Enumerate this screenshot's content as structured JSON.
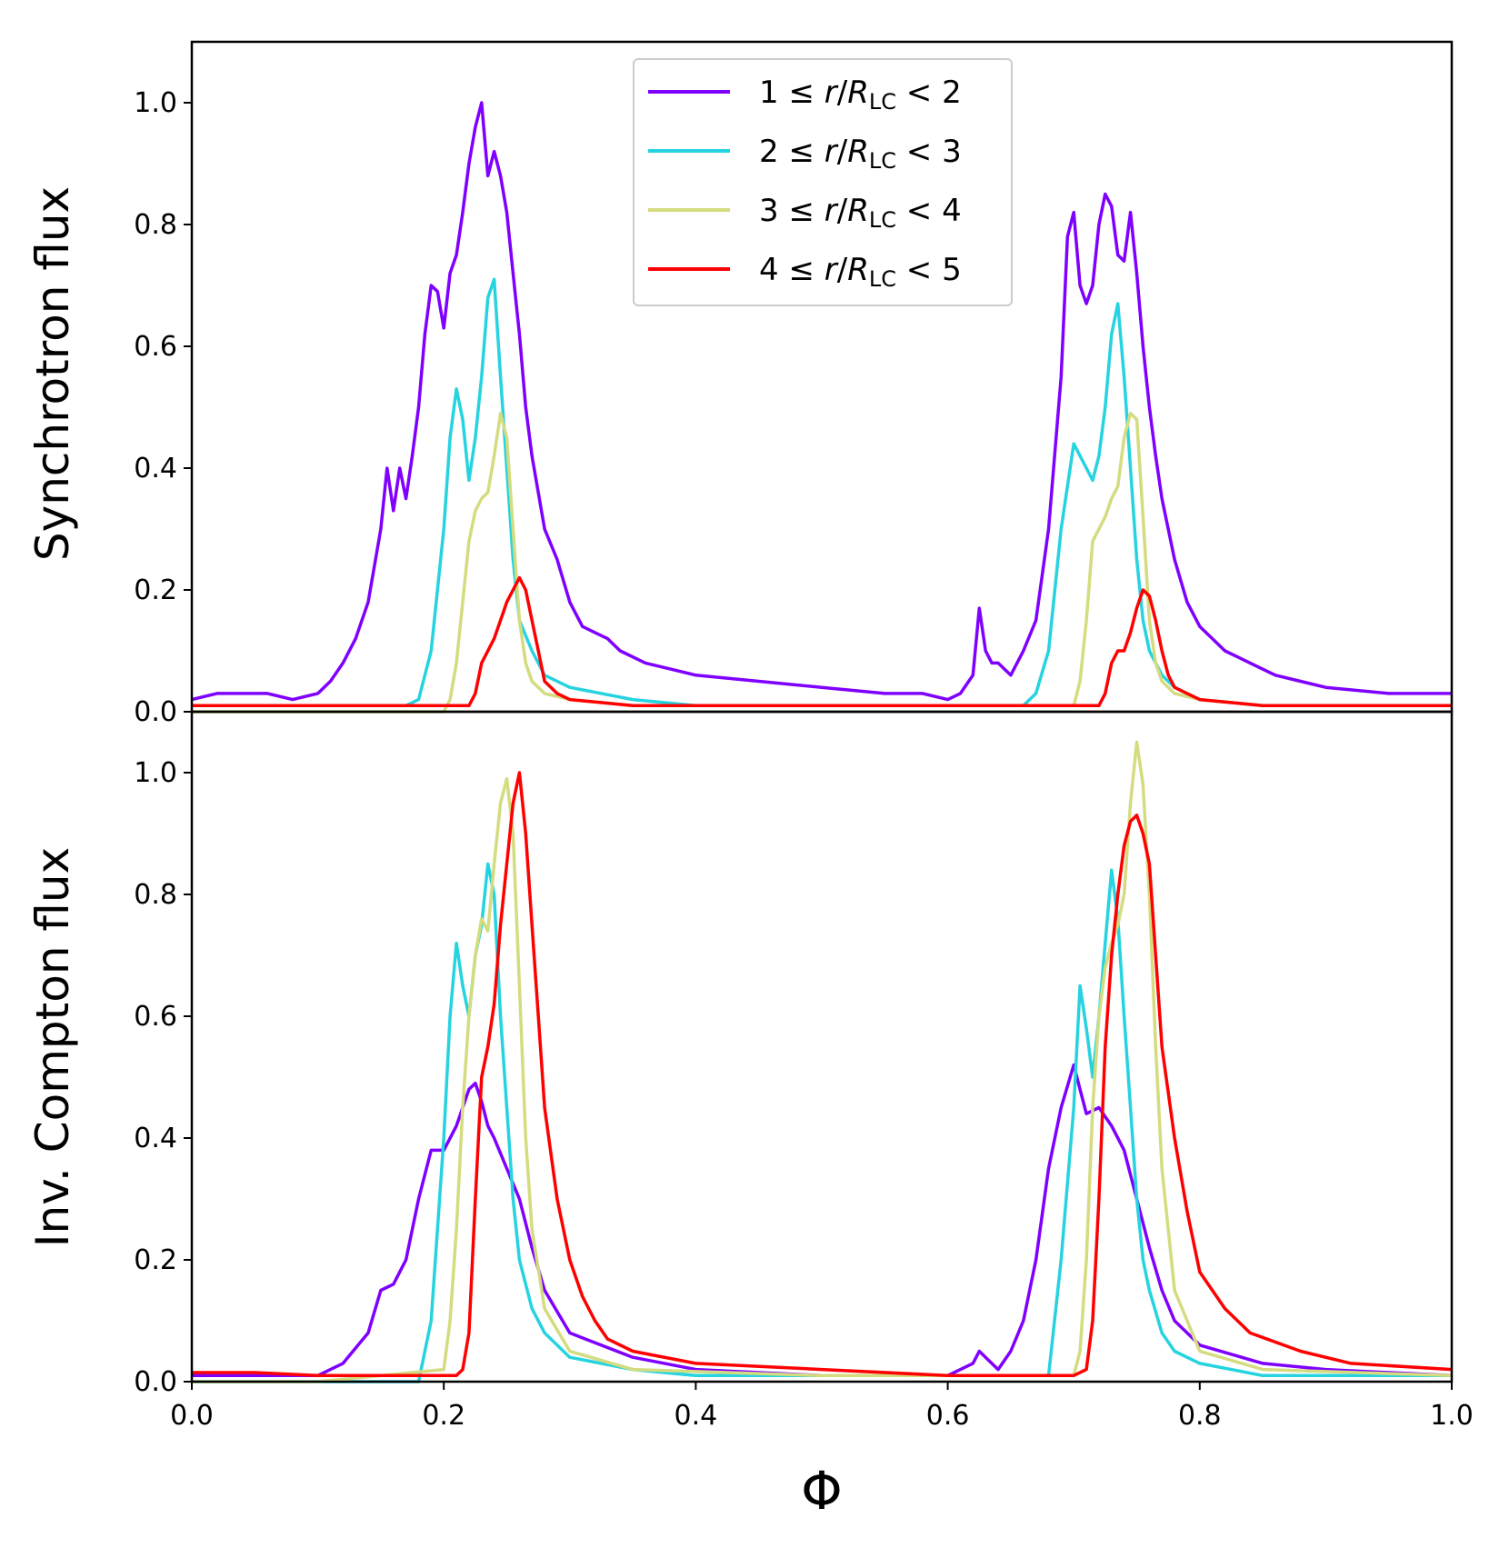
{
  "chart_data": [
    {
      "type": "line",
      "title": "",
      "xlabel": "",
      "ylabel": "Synchrotron flux",
      "xlim": [
        0.0,
        1.0
      ],
      "ylim": [
        0.0,
        1.1
      ],
      "grid": false,
      "xticks": [],
      "yticks": [
        "0.0",
        "0.2",
        "0.4",
        "0.6",
        "0.8",
        "1.0"
      ],
      "legend": {
        "position": "upper-center",
        "entries": [
          {
            "prefix": "1 ≤ ",
            "r": "r",
            "slash": "/",
            "R": "R",
            "sub": "LC",
            "suffix": " < 2",
            "color": "#7f00ff"
          },
          {
            "prefix": "2 ≤ ",
            "r": "r",
            "slash": "/",
            "R": "R",
            "sub": "LC",
            "suffix": " < 3",
            "color": "#26d3e0"
          },
          {
            "prefix": "3 ≤ ",
            "r": "r",
            "slash": "/",
            "R": "R",
            "sub": "LC",
            "suffix": " < 4",
            "color": "#d4dc7f"
          },
          {
            "prefix": "4 ≤ ",
            "r": "r",
            "slash": "/",
            "R": "R",
            "sub": "LC",
            "suffix": " < 5",
            "color": "#ff0000"
          }
        ]
      },
      "series": [
        {
          "name": "1 ≤ r/R_LC < 2",
          "color": "#7f00ff",
          "x": [
            0.0,
            0.02,
            0.04,
            0.06,
            0.08,
            0.1,
            0.11,
            0.12,
            0.13,
            0.14,
            0.15,
            0.155,
            0.16,
            0.165,
            0.17,
            0.175,
            0.18,
            0.185,
            0.19,
            0.195,
            0.2,
            0.205,
            0.21,
            0.215,
            0.22,
            0.225,
            0.23,
            0.235,
            0.24,
            0.245,
            0.25,
            0.255,
            0.26,
            0.265,
            0.27,
            0.28,
            0.29,
            0.3,
            0.31,
            0.32,
            0.33,
            0.34,
            0.36,
            0.38,
            0.4,
            0.45,
            0.5,
            0.55,
            0.58,
            0.6,
            0.61,
            0.62,
            0.625,
            0.63,
            0.635,
            0.64,
            0.65,
            0.66,
            0.67,
            0.68,
            0.69,
            0.695,
            0.7,
            0.705,
            0.71,
            0.715,
            0.72,
            0.725,
            0.73,
            0.735,
            0.74,
            0.745,
            0.75,
            0.755,
            0.76,
            0.765,
            0.77,
            0.78,
            0.79,
            0.8,
            0.81,
            0.82,
            0.83,
            0.84,
            0.86,
            0.88,
            0.9,
            0.95,
            1.0
          ],
          "y": [
            0.02,
            0.03,
            0.03,
            0.03,
            0.02,
            0.03,
            0.05,
            0.08,
            0.12,
            0.18,
            0.3,
            0.4,
            0.33,
            0.4,
            0.35,
            0.42,
            0.5,
            0.62,
            0.7,
            0.69,
            0.63,
            0.72,
            0.75,
            0.82,
            0.9,
            0.96,
            1.0,
            0.88,
            0.92,
            0.88,
            0.82,
            0.72,
            0.62,
            0.5,
            0.42,
            0.3,
            0.25,
            0.18,
            0.14,
            0.13,
            0.12,
            0.1,
            0.08,
            0.07,
            0.06,
            0.05,
            0.04,
            0.03,
            0.03,
            0.02,
            0.03,
            0.06,
            0.17,
            0.1,
            0.08,
            0.08,
            0.06,
            0.1,
            0.15,
            0.3,
            0.55,
            0.78,
            0.82,
            0.7,
            0.67,
            0.7,
            0.8,
            0.85,
            0.83,
            0.75,
            0.74,
            0.82,
            0.72,
            0.6,
            0.5,
            0.42,
            0.35,
            0.25,
            0.18,
            0.14,
            0.12,
            0.1,
            0.09,
            0.08,
            0.06,
            0.05,
            0.04,
            0.03,
            0.03
          ]
        },
        {
          "name": "2 ≤ r/R_LC < 3",
          "color": "#26d3e0",
          "x": [
            0.0,
            0.1,
            0.17,
            0.18,
            0.19,
            0.2,
            0.205,
            0.21,
            0.215,
            0.22,
            0.225,
            0.23,
            0.235,
            0.24,
            0.245,
            0.25,
            0.255,
            0.26,
            0.27,
            0.28,
            0.3,
            0.35,
            0.4,
            0.5,
            0.6,
            0.65,
            0.66,
            0.67,
            0.68,
            0.69,
            0.7,
            0.71,
            0.715,
            0.72,
            0.725,
            0.73,
            0.735,
            0.74,
            0.745,
            0.75,
            0.755,
            0.76,
            0.77,
            0.78,
            0.8,
            0.85,
            0.9,
            1.0
          ],
          "y": [
            0.01,
            0.01,
            0.01,
            0.02,
            0.1,
            0.3,
            0.45,
            0.53,
            0.48,
            0.38,
            0.45,
            0.55,
            0.68,
            0.71,
            0.55,
            0.4,
            0.25,
            0.15,
            0.1,
            0.06,
            0.04,
            0.02,
            0.01,
            0.01,
            0.01,
            0.01,
            0.01,
            0.03,
            0.1,
            0.3,
            0.44,
            0.4,
            0.38,
            0.42,
            0.5,
            0.62,
            0.67,
            0.55,
            0.4,
            0.25,
            0.15,
            0.1,
            0.06,
            0.04,
            0.02,
            0.01,
            0.01,
            0.01
          ]
        },
        {
          "name": "3 ≤ r/R_LC < 4",
          "color": "#d4dc7f",
          "x": [
            0.0,
            0.1,
            0.2,
            0.205,
            0.21,
            0.215,
            0.22,
            0.225,
            0.23,
            0.235,
            0.24,
            0.245,
            0.25,
            0.255,
            0.26,
            0.265,
            0.27,
            0.28,
            0.3,
            0.35,
            0.5,
            0.7,
            0.705,
            0.71,
            0.715,
            0.72,
            0.725,
            0.73,
            0.735,
            0.74,
            0.745,
            0.75,
            0.755,
            0.76,
            0.765,
            0.77,
            0.78,
            0.8,
            0.85,
            1.0
          ],
          "y": [
            0.0,
            0.0,
            0.0,
            0.02,
            0.08,
            0.18,
            0.28,
            0.33,
            0.35,
            0.36,
            0.42,
            0.49,
            0.45,
            0.3,
            0.15,
            0.08,
            0.05,
            0.03,
            0.02,
            0.01,
            0.01,
            0.01,
            0.05,
            0.15,
            0.28,
            0.3,
            0.32,
            0.35,
            0.37,
            0.45,
            0.49,
            0.48,
            0.32,
            0.15,
            0.08,
            0.05,
            0.03,
            0.02,
            0.01,
            0.01
          ]
        },
        {
          "name": "4 ≤ r/R_LC < 5",
          "color": "#ff0000",
          "x": [
            0.0,
            0.1,
            0.2,
            0.22,
            0.225,
            0.23,
            0.235,
            0.24,
            0.245,
            0.25,
            0.255,
            0.26,
            0.265,
            0.27,
            0.275,
            0.28,
            0.29,
            0.3,
            0.35,
            0.5,
            0.7,
            0.72,
            0.725,
            0.73,
            0.735,
            0.74,
            0.745,
            0.75,
            0.755,
            0.76,
            0.765,
            0.77,
            0.775,
            0.78,
            0.79,
            0.8,
            0.85,
            1.0
          ],
          "y": [
            0.01,
            0.01,
            0.01,
            0.01,
            0.03,
            0.08,
            0.1,
            0.12,
            0.15,
            0.18,
            0.2,
            0.22,
            0.2,
            0.15,
            0.1,
            0.05,
            0.03,
            0.02,
            0.01,
            0.01,
            0.01,
            0.01,
            0.03,
            0.08,
            0.1,
            0.1,
            0.13,
            0.17,
            0.2,
            0.19,
            0.15,
            0.1,
            0.06,
            0.04,
            0.03,
            0.02,
            0.01,
            0.01
          ]
        }
      ]
    },
    {
      "type": "line",
      "title": "",
      "xlabel": "Φ",
      "ylabel": "Inv. Compton flux",
      "xlim": [
        0.0,
        1.0
      ],
      "ylim": [
        0.0,
        1.1
      ],
      "grid": false,
      "xticks": [
        "0.0",
        "0.2",
        "0.4",
        "0.6",
        "0.8",
        "1.0"
      ],
      "yticks": [
        "0.0",
        "0.2",
        "0.4",
        "0.6",
        "0.8",
        "1.0"
      ],
      "series": [
        {
          "name": "1 ≤ r/R_LC < 2",
          "color": "#7f00ff",
          "x": [
            0.0,
            0.05,
            0.1,
            0.12,
            0.14,
            0.15,
            0.16,
            0.17,
            0.18,
            0.19,
            0.2,
            0.21,
            0.22,
            0.225,
            0.23,
            0.235,
            0.24,
            0.25,
            0.26,
            0.27,
            0.28,
            0.3,
            0.35,
            0.4,
            0.5,
            0.6,
            0.62,
            0.625,
            0.63,
            0.64,
            0.65,
            0.66,
            0.67,
            0.68,
            0.69,
            0.7,
            0.705,
            0.71,
            0.72,
            0.73,
            0.74,
            0.75,
            0.76,
            0.77,
            0.78,
            0.8,
            0.85,
            0.9,
            1.0
          ],
          "y": [
            0.01,
            0.01,
            0.01,
            0.03,
            0.08,
            0.15,
            0.16,
            0.2,
            0.3,
            0.38,
            0.38,
            0.42,
            0.48,
            0.49,
            0.46,
            0.42,
            0.4,
            0.35,
            0.3,
            0.22,
            0.15,
            0.08,
            0.04,
            0.02,
            0.01,
            0.01,
            0.03,
            0.05,
            0.04,
            0.02,
            0.05,
            0.1,
            0.2,
            0.35,
            0.45,
            0.52,
            0.48,
            0.44,
            0.45,
            0.42,
            0.38,
            0.3,
            0.22,
            0.15,
            0.1,
            0.06,
            0.03,
            0.02,
            0.01
          ]
        },
        {
          "name": "2 ≤ r/R_LC < 3",
          "color": "#26d3e0",
          "x": [
            0.0,
            0.1,
            0.18,
            0.19,
            0.2,
            0.205,
            0.21,
            0.215,
            0.22,
            0.225,
            0.23,
            0.235,
            0.24,
            0.245,
            0.25,
            0.255,
            0.26,
            0.27,
            0.28,
            0.3,
            0.35,
            0.4,
            0.5,
            0.65,
            0.68,
            0.69,
            0.7,
            0.705,
            0.71,
            0.715,
            0.72,
            0.725,
            0.73,
            0.735,
            0.74,
            0.745,
            0.75,
            0.755,
            0.76,
            0.77,
            0.78,
            0.8,
            0.85,
            1.0
          ],
          "y": [
            0.0,
            0.0,
            0.0,
            0.1,
            0.4,
            0.6,
            0.72,
            0.65,
            0.6,
            0.7,
            0.75,
            0.85,
            0.8,
            0.6,
            0.45,
            0.3,
            0.2,
            0.12,
            0.08,
            0.04,
            0.02,
            0.01,
            0.01,
            0.01,
            0.01,
            0.2,
            0.45,
            0.65,
            0.58,
            0.5,
            0.6,
            0.72,
            0.84,
            0.76,
            0.6,
            0.45,
            0.3,
            0.2,
            0.15,
            0.08,
            0.05,
            0.03,
            0.01,
            0.01
          ]
        },
        {
          "name": "3 ≤ r/R_LC < 4",
          "color": "#d4dc7f",
          "x": [
            0.0,
            0.1,
            0.2,
            0.205,
            0.21,
            0.215,
            0.22,
            0.225,
            0.23,
            0.235,
            0.24,
            0.245,
            0.25,
            0.255,
            0.26,
            0.265,
            0.27,
            0.28,
            0.3,
            0.35,
            0.5,
            0.7,
            0.705,
            0.71,
            0.715,
            0.72,
            0.725,
            0.73,
            0.735,
            0.74,
            0.745,
            0.75,
            0.755,
            0.76,
            0.765,
            0.77,
            0.78,
            0.8,
            0.85,
            1.0
          ],
          "y": [
            0.0,
            0.0,
            0.02,
            0.1,
            0.25,
            0.45,
            0.6,
            0.7,
            0.76,
            0.74,
            0.85,
            0.95,
            0.99,
            0.9,
            0.65,
            0.4,
            0.25,
            0.12,
            0.05,
            0.02,
            0.01,
            0.01,
            0.05,
            0.2,
            0.45,
            0.6,
            0.68,
            0.72,
            0.75,
            0.8,
            0.95,
            1.05,
            0.98,
            0.8,
            0.55,
            0.35,
            0.15,
            0.05,
            0.02,
            0.01
          ]
        },
        {
          "name": "4 ≤ r/R_LC < 5",
          "color": "#ff0000",
          "x": [
            0.0,
            0.05,
            0.1,
            0.2,
            0.21,
            0.215,
            0.22,
            0.225,
            0.23,
            0.235,
            0.24,
            0.245,
            0.25,
            0.255,
            0.26,
            0.265,
            0.27,
            0.275,
            0.28,
            0.29,
            0.3,
            0.31,
            0.32,
            0.33,
            0.35,
            0.4,
            0.5,
            0.6,
            0.7,
            0.71,
            0.715,
            0.72,
            0.725,
            0.73,
            0.735,
            0.74,
            0.745,
            0.75,
            0.755,
            0.76,
            0.765,
            0.77,
            0.78,
            0.79,
            0.8,
            0.82,
            0.84,
            0.88,
            0.92,
            1.0
          ],
          "y": [
            0.015,
            0.015,
            0.01,
            0.01,
            0.01,
            0.02,
            0.08,
            0.3,
            0.5,
            0.55,
            0.62,
            0.75,
            0.85,
            0.95,
            1.0,
            0.9,
            0.75,
            0.6,
            0.45,
            0.3,
            0.2,
            0.14,
            0.1,
            0.07,
            0.05,
            0.03,
            0.02,
            0.01,
            0.01,
            0.02,
            0.1,
            0.3,
            0.55,
            0.7,
            0.8,
            0.88,
            0.92,
            0.93,
            0.9,
            0.85,
            0.7,
            0.55,
            0.4,
            0.28,
            0.18,
            0.12,
            0.08,
            0.05,
            0.03,
            0.02
          ]
        }
      ]
    }
  ]
}
